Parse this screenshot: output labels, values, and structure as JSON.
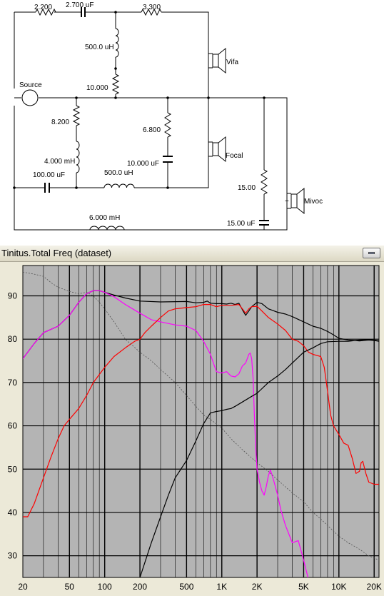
{
  "schematic": {
    "labels": {
      "r1": "2.200",
      "c1": "2.700 uF",
      "r2": "3.300",
      "l1": "500.0 uH",
      "r3": "10.000",
      "source": "Source",
      "tweeter": "Vifa",
      "r4": "8.200",
      "r5": "6.800",
      "l2": "4.000 mH",
      "c2": "10.000 uF",
      "midrange": "Focal",
      "c3": "100.00 uF",
      "l3": "500.0 uH",
      "r6": "15.00",
      "woofer": "Mivoc",
      "l4": "6.000 mH",
      "c4": "15.00 uF",
      "plus": "+"
    }
  },
  "window": {
    "title": "Tinitus.Total Freq (dataset)"
  },
  "chart_data": {
    "type": "line",
    "x_scale": "log",
    "xlim": [
      20,
      22000
    ],
    "ylim": [
      25,
      97
    ],
    "x_ticks": [
      {
        "value": 20,
        "label": "20"
      },
      {
        "value": 50,
        "label": "50"
      },
      {
        "value": 100,
        "label": "100"
      },
      {
        "value": 200,
        "label": "200"
      },
      {
        "value": 500,
        "label": "500"
      },
      {
        "value": 1000,
        "label": "1K"
      },
      {
        "value": 2000,
        "label": "2K"
      },
      {
        "value": 5000,
        "label": "5K"
      },
      {
        "value": 10000,
        "label": "10K"
      },
      {
        "value": 20000,
        "label": "20K"
      }
    ],
    "y_ticks": [
      {
        "value": 30,
        "label": "30"
      },
      {
        "value": 40,
        "label": "40"
      },
      {
        "value": 50,
        "label": "50"
      },
      {
        "value": 60,
        "label": "60"
      },
      {
        "value": 70,
        "label": "70"
      },
      {
        "value": 80,
        "label": "80"
      },
      {
        "value": 90,
        "label": "90"
      }
    ],
    "grid": true,
    "colors": {
      "total": "#000000",
      "woofer": "#ff00ff",
      "midrange": "#ff0000",
      "tweeter": "#000000",
      "impedance": "#555555",
      "background": "#b4b4b4",
      "grid": "#000000"
    },
    "series": [
      {
        "id": "total",
        "color": "#000000",
        "points": [
          [
            20,
            75.5
          ],
          [
            25,
            79
          ],
          [
            30,
            81.5
          ],
          [
            35,
            82.3
          ],
          [
            40,
            83
          ],
          [
            50,
            85.5
          ],
          [
            60,
            88.5
          ],
          [
            70,
            90.5
          ],
          [
            80,
            91.2
          ],
          [
            90,
            91.2
          ],
          [
            100,
            90.8
          ],
          [
            120,
            90.2
          ],
          [
            150,
            89.5
          ],
          [
            200,
            88.8
          ],
          [
            300,
            88.6
          ],
          [
            500,
            88.7
          ],
          [
            600,
            88.4
          ],
          [
            700,
            88.5
          ],
          [
            750,
            88.8
          ],
          [
            800,
            88.3
          ],
          [
            900,
            88.2
          ],
          [
            1000,
            88.2
          ],
          [
            1100,
            88.1
          ],
          [
            1200,
            88.3
          ],
          [
            1300,
            88.0
          ],
          [
            1400,
            88.3
          ],
          [
            1500,
            86.8
          ],
          [
            1600,
            85.5
          ],
          [
            1700,
            86.5
          ],
          [
            1800,
            87.5
          ],
          [
            2000,
            88.5
          ],
          [
            2200,
            88.2
          ],
          [
            2500,
            87.0
          ],
          [
            3000,
            86.2
          ],
          [
            3500,
            85.8
          ],
          [
            4000,
            85.2
          ],
          [
            5000,
            84.0
          ],
          [
            6000,
            83.0
          ],
          [
            7000,
            82.5
          ],
          [
            8000,
            81.8
          ],
          [
            9000,
            81.0
          ],
          [
            10000,
            80.2
          ],
          [
            12000,
            79.8
          ],
          [
            15000,
            79.6
          ],
          [
            18000,
            79.8
          ],
          [
            20000,
            79.7
          ],
          [
            22000,
            79.5
          ]
        ]
      },
      {
        "id": "woofer",
        "color": "#ff00ff",
        "points": [
          [
            20,
            75.5
          ],
          [
            25,
            79
          ],
          [
            30,
            81.5
          ],
          [
            35,
            82.3
          ],
          [
            40,
            83
          ],
          [
            50,
            85.5
          ],
          [
            60,
            88.5
          ],
          [
            70,
            90.5
          ],
          [
            80,
            91.2
          ],
          [
            90,
            91.2
          ],
          [
            100,
            90.8
          ],
          [
            120,
            89.8
          ],
          [
            150,
            88.0
          ],
          [
            200,
            86.0
          ],
          [
            250,
            84.5
          ],
          [
            300,
            84.0
          ],
          [
            400,
            83.3
          ],
          [
            500,
            83.0
          ],
          [
            600,
            82.0
          ],
          [
            700,
            79.5
          ],
          [
            800,
            76.5
          ],
          [
            900,
            72.5
          ],
          [
            1000,
            72.2
          ],
          [
            1100,
            72.5
          ],
          [
            1200,
            71.5
          ],
          [
            1300,
            71.3
          ],
          [
            1400,
            72.0
          ],
          [
            1500,
            73.8
          ],
          [
            1600,
            74.5
          ],
          [
            1700,
            76.5
          ],
          [
            1750,
            76.8
          ],
          [
            1800,
            75.5
          ],
          [
            1850,
            71.0
          ],
          [
            1900,
            62.0
          ],
          [
            1950,
            55.0
          ],
          [
            2000,
            50.0
          ],
          [
            2100,
            47.0
          ],
          [
            2200,
            45.0
          ],
          [
            2300,
            44.0
          ],
          [
            2400,
            46.0
          ],
          [
            2500,
            48.5
          ],
          [
            2600,
            49.8
          ],
          [
            2700,
            48.5
          ],
          [
            2800,
            47.0
          ],
          [
            3000,
            44.0
          ],
          [
            3200,
            40.5
          ],
          [
            3500,
            37.0
          ],
          [
            4000,
            33.0
          ],
          [
            4500,
            33.5
          ],
          [
            5000,
            29.0
          ],
          [
            5500,
            24.5
          ]
        ]
      },
      {
        "id": "midrange",
        "color": "#ff0000",
        "points": [
          [
            20,
            39.0
          ],
          [
            22,
            39.0
          ],
          [
            25,
            42.0
          ],
          [
            30,
            48.0
          ],
          [
            35,
            53.0
          ],
          [
            40,
            57.0
          ],
          [
            45,
            60.0
          ],
          [
            50,
            61.5
          ],
          [
            60,
            64.0
          ],
          [
            70,
            67.0
          ],
          [
            80,
            70.0
          ],
          [
            100,
            73.5
          ],
          [
            120,
            76.0
          ],
          [
            150,
            78.0
          ],
          [
            180,
            79.5
          ],
          [
            200,
            80.0
          ],
          [
            220,
            81.5
          ],
          [
            250,
            83.0
          ],
          [
            300,
            85.0
          ],
          [
            350,
            86.5
          ],
          [
            400,
            87.0
          ],
          [
            500,
            87.3
          ],
          [
            600,
            87.5
          ],
          [
            700,
            88.0
          ],
          [
            800,
            88.0
          ],
          [
            900,
            87.5
          ],
          [
            1000,
            87.8
          ],
          [
            1200,
            87.8
          ],
          [
            1400,
            88.0
          ],
          [
            1500,
            87.0
          ],
          [
            1600,
            86.0
          ],
          [
            1700,
            87.0
          ],
          [
            1800,
            87.5
          ],
          [
            2000,
            87.6
          ],
          [
            2200,
            86.5
          ],
          [
            2500,
            85.0
          ],
          [
            3000,
            83.5
          ],
          [
            3500,
            82.0
          ],
          [
            4000,
            80.0
          ],
          [
            4500,
            79.5
          ],
          [
            5000,
            78.5
          ],
          [
            5500,
            77.0
          ],
          [
            6000,
            76.5
          ],
          [
            7000,
            76.0
          ],
          [
            7500,
            73.5
          ],
          [
            8000,
            68.0
          ],
          [
            8500,
            62.5
          ],
          [
            9000,
            60.0
          ],
          [
            10000,
            58.0
          ],
          [
            11000,
            56.0
          ],
          [
            12000,
            55.5
          ],
          [
            13000,
            52.5
          ],
          [
            14000,
            49.0
          ],
          [
            15000,
            49.5
          ],
          [
            15500,
            51.5
          ],
          [
            16000,
            51.8
          ],
          [
            17000,
            49.0
          ],
          [
            18000,
            47.0
          ],
          [
            20000,
            46.5
          ],
          [
            22000,
            46.5
          ]
        ]
      },
      {
        "id": "tweeter",
        "color": "#000000",
        "points": [
          [
            200,
            25.0
          ],
          [
            250,
            33.0
          ],
          [
            300,
            39.0
          ],
          [
            350,
            44.0
          ],
          [
            400,
            48.0
          ],
          [
            500,
            52.0
          ],
          [
            600,
            56.5
          ],
          [
            700,
            60.5
          ],
          [
            800,
            63.0
          ],
          [
            900,
            63.3
          ],
          [
            1000,
            63.5
          ],
          [
            1100,
            63.8
          ],
          [
            1200,
            64.0
          ],
          [
            1300,
            64.5
          ],
          [
            1500,
            65.5
          ],
          [
            1800,
            66.8
          ],
          [
            2000,
            67.5
          ],
          [
            2500,
            70.0
          ],
          [
            3000,
            71.5
          ],
          [
            3500,
            73.0
          ],
          [
            4000,
            74.5
          ],
          [
            5000,
            77.0
          ],
          [
            6000,
            78.0
          ],
          [
            7000,
            79.0
          ],
          [
            8000,
            79.4
          ],
          [
            10000,
            79.5
          ],
          [
            12000,
            79.5
          ],
          [
            15000,
            79.8
          ],
          [
            18000,
            79.9
          ],
          [
            20000,
            79.8
          ],
          [
            22000,
            79.6
          ]
        ]
      },
      {
        "id": "impedance",
        "color": "#555555",
        "dashed": true,
        "points": [
          [
            20,
            95.5
          ],
          [
            25,
            95.0
          ],
          [
            30,
            94.5
          ],
          [
            35,
            93.0
          ],
          [
            40,
            92.0
          ],
          [
            50,
            91.0
          ],
          [
            60,
            90.5
          ],
          [
            70,
            90.8
          ],
          [
            80,
            90.0
          ],
          [
            90,
            88.5
          ],
          [
            100,
            87.0
          ],
          [
            120,
            84.0
          ],
          [
            150,
            80.0
          ],
          [
            200,
            77.0
          ],
          [
            250,
            75.0
          ],
          [
            300,
            73.0
          ],
          [
            400,
            70.0
          ],
          [
            500,
            67.0
          ],
          [
            600,
            64.5
          ],
          [
            700,
            62.5
          ],
          [
            800,
            61.5
          ],
          [
            1000,
            59.5
          ],
          [
            1200,
            57.0
          ],
          [
            1500,
            54.5
          ],
          [
            2000,
            51.5
          ],
          [
            2500,
            49.5
          ],
          [
            3000,
            47.5
          ],
          [
            4000,
            44.5
          ],
          [
            5000,
            42.5
          ],
          [
            6000,
            40.0
          ],
          [
            7000,
            38.5
          ],
          [
            8000,
            37.0
          ],
          [
            10000,
            34.5
          ],
          [
            12000,
            33.0
          ],
          [
            15000,
            31.5
          ],
          [
            18000,
            30.0
          ],
          [
            22000,
            29.0
          ]
        ]
      }
    ]
  }
}
